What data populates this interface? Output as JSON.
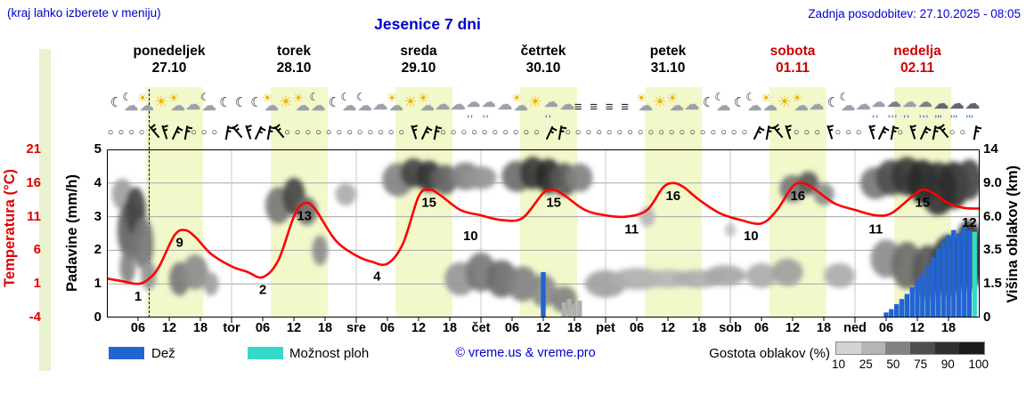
{
  "header": {
    "hint": "(kraj lahko izberete v meniju)",
    "title": "Jesenice 7 dni",
    "updated": "Zadnja posodobitev: 27.10.2025 - 08:05"
  },
  "days": [
    {
      "name": "ponedeljek",
      "date": "27.10",
      "weekend": false
    },
    {
      "name": "torek",
      "date": "28.10",
      "weekend": false
    },
    {
      "name": "sreda",
      "date": "29.10",
      "weekend": false
    },
    {
      "name": "četrtek",
      "date": "30.10",
      "weekend": false
    },
    {
      "name": "petek",
      "date": "31.10",
      "weekend": false
    },
    {
      "name": "sobota",
      "date": "01.11",
      "weekend": true
    },
    {
      "name": "nedelja",
      "date": "02.11",
      "weekend": true
    }
  ],
  "left_axis": {
    "temp_label": "Temperatura (°C)",
    "temp_ticks": [
      "21",
      "16",
      "11",
      "6",
      "1",
      "-4"
    ],
    "precip_label": "Padavine (mm/h)",
    "precip_ticks": [
      "5",
      "4",
      "3",
      "2",
      "1",
      "0"
    ]
  },
  "right_axis": {
    "label": "Višina oblakov (km)",
    "ticks": [
      "14",
      "9.0",
      "6.0",
      "3.5",
      "1.5",
      "0"
    ]
  },
  "x_axis": {
    "labels": [
      {
        "t": 6,
        "text": "06"
      },
      {
        "t": 12,
        "text": "12"
      },
      {
        "t": 18,
        "text": "18"
      },
      {
        "t": 24,
        "text": "tor",
        "day": true
      },
      {
        "t": 30,
        "text": "06"
      },
      {
        "t": 36,
        "text": "12"
      },
      {
        "t": 42,
        "text": "18"
      },
      {
        "t": 48,
        "text": "sre",
        "day": true
      },
      {
        "t": 54,
        "text": "06"
      },
      {
        "t": 60,
        "text": "12"
      },
      {
        "t": 66,
        "text": "18"
      },
      {
        "t": 72,
        "text": "čet",
        "day": true
      },
      {
        "t": 78,
        "text": "06"
      },
      {
        "t": 84,
        "text": "12"
      },
      {
        "t": 90,
        "text": "18"
      },
      {
        "t": 96,
        "text": "pet",
        "day": true
      },
      {
        "t": 102,
        "text": "06"
      },
      {
        "t": 108,
        "text": "12"
      },
      {
        "t": 114,
        "text": "18"
      },
      {
        "t": 120,
        "text": "sob",
        "day": true
      },
      {
        "t": 126,
        "text": "06"
      },
      {
        "t": 132,
        "text": "12"
      },
      {
        "t": 138,
        "text": "18"
      },
      {
        "t": 144,
        "text": "ned",
        "day": true
      },
      {
        "t": 150,
        "text": "06"
      },
      {
        "t": 156,
        "text": "12"
      },
      {
        "t": 162,
        "text": "18"
      }
    ]
  },
  "legend": {
    "rain": "Dež",
    "showers": "Možnost ploh",
    "copyright": "© vreme.us & vreme.pro",
    "clouddensity": "Gostota oblakov (%)",
    "cloud_scale": [
      "10",
      "25",
      "50",
      "75",
      "90",
      "100"
    ]
  },
  "icons": {
    "glyphs": {
      "sun": "☀",
      "moon": "☾",
      "cloud": "☁",
      "fog": "≡",
      "drops": "‚‚",
      "drops_heavy": "‚‚‚",
      "calm": "○"
    },
    "slots": [
      "moon",
      "cloud-moon",
      "sun-cloud",
      "sun",
      "sun-cloud",
      "cloud",
      "cloud-moon",
      "moon",
      "moon",
      "moon",
      "sun-cloud",
      "sun",
      "sun-cloud",
      "cloud-moon",
      "moon",
      "cloud-moon",
      "cloud-moon",
      "cloud",
      "sun-cloud",
      "sun",
      "sun-cloud",
      "cloud",
      "cloud",
      "cloud-rain",
      "cloud-rain",
      "cloud",
      "sun-cloud",
      "sun",
      "cloud-rain",
      "cloud",
      "fog",
      "fog",
      "fog",
      "fog",
      "sun-cloud",
      "sun",
      "sun-cloud",
      "cloud",
      "moon",
      "cloud-moon",
      "moon",
      "cloud-moon",
      "sun-cloud",
      "sun",
      "sun-cloud",
      "cloud",
      "moon",
      "cloud-moon",
      "cloud",
      "cloud-rain",
      "rain",
      "cloud-rain",
      "rain",
      "heavy-rain",
      "heavy-rain",
      "heavy-rain"
    ]
  },
  "wind": {
    "slots": [
      "c",
      "c",
      "c",
      "c",
      "b",
      "b",
      "b",
      "b",
      "c",
      "c",
      "c",
      "b",
      "b",
      "b",
      "b",
      "b",
      "b",
      "c",
      "c",
      "c",
      "c",
      "c",
      "c",
      "c",
      "c",
      "c",
      "c",
      "c",
      "c",
      "b",
      "b",
      "b",
      "c",
      "c",
      "c",
      "c",
      "c",
      "c",
      "c",
      "c",
      "c",
      "c",
      "b",
      "b",
      "c",
      "c",
      "c",
      "c",
      "c",
      "c",
      "c",
      "c",
      "c",
      "c",
      "c",
      "c",
      "c",
      "c",
      "c",
      "c",
      "c",
      "c",
      "b",
      "b",
      "b",
      "b",
      "c",
      "c",
      "c",
      "b",
      "c",
      "c",
      "c",
      "b",
      "b",
      "b",
      "c",
      "b",
      "b",
      "b",
      "b",
      "c",
      "c",
      "b"
    ]
  },
  "chart_data": {
    "type": "line",
    "title": "Jesenice 7 dni",
    "x_unit": "hours from Mon 27.10 00:00",
    "x_range": [
      0,
      168
    ],
    "ylim_temp": [
      -4,
      21
    ],
    "ylim_precip": [
      0,
      5
    ],
    "cloud_height_ticks_km": [
      0,
      1.5,
      3.5,
      6,
      9,
      14
    ],
    "cloud_density_scale": [
      10,
      25,
      50,
      75,
      90,
      100
    ],
    "day_bands": {
      "start_hour": 7.5,
      "end_hour": 18.5,
      "color": "#f3f8cb"
    },
    "now_line_t": 8.1,
    "temperature_series": {
      "name": "Temperatura (°C)",
      "color": "#ff0000",
      "points": [
        [
          0,
          1.8
        ],
        [
          3,
          1.4
        ],
        [
          6,
          1.0
        ],
        [
          8,
          1.7
        ],
        [
          10,
          3.5
        ],
        [
          13,
          8.2
        ],
        [
          15,
          9.0
        ],
        [
          17,
          8.0
        ],
        [
          20,
          5.5
        ],
        [
          24,
          3.6
        ],
        [
          27,
          2.8
        ],
        [
          30,
          2.0
        ],
        [
          33,
          4.5
        ],
        [
          36,
          11.0
        ],
        [
          38,
          13.0
        ],
        [
          40,
          12.2
        ],
        [
          44,
          7.5
        ],
        [
          48,
          5.2
        ],
        [
          51,
          4.3
        ],
        [
          54,
          4.0
        ],
        [
          57,
          7.0
        ],
        [
          60,
          14.0
        ],
        [
          62,
          15.0
        ],
        [
          64,
          14.3
        ],
        [
          68,
          12.0
        ],
        [
          72,
          11.2
        ],
        [
          76,
          10.5
        ],
        [
          80,
          10.8
        ],
        [
          84,
          14.5
        ],
        [
          86,
          15.0
        ],
        [
          88,
          14.2
        ],
        [
          92,
          12.0
        ],
        [
          96,
          11.2
        ],
        [
          100,
          11.0
        ],
        [
          104,
          12.0
        ],
        [
          107,
          15.3
        ],
        [
          109,
          16.0
        ],
        [
          111,
          15.4
        ],
        [
          114,
          13.5
        ],
        [
          118,
          11.5
        ],
        [
          122,
          10.5
        ],
        [
          126,
          10.0
        ],
        [
          129,
          12.0
        ],
        [
          132,
          15.5
        ],
        [
          134,
          16.0
        ],
        [
          136,
          15.2
        ],
        [
          140,
          13.0
        ],
        [
          144,
          12.0
        ],
        [
          148,
          11.2
        ],
        [
          151,
          11.5
        ],
        [
          155,
          14.0
        ],
        [
          157,
          15.0
        ],
        [
          159,
          14.5
        ],
        [
          162,
          13.0
        ],
        [
          165,
          12.3
        ],
        [
          168,
          12.2
        ]
      ]
    },
    "temp_labels": [
      {
        "t": 6,
        "v": 1
      },
      {
        "t": 14,
        "v": 9
      },
      {
        "t": 30,
        "v": 2
      },
      {
        "t": 38,
        "v": 13
      },
      {
        "t": 52,
        "v": 4
      },
      {
        "t": 62,
        "v": 15
      },
      {
        "t": 70,
        "v": 10
      },
      {
        "t": 86,
        "v": 15
      },
      {
        "t": 101,
        "v": 11
      },
      {
        "t": 109,
        "v": 16
      },
      {
        "t": 124,
        "v": 10
      },
      {
        "t": 133,
        "v": 16
      },
      {
        "t": 148,
        "v": 11
      },
      {
        "t": 157,
        "v": 15
      },
      {
        "t": 166,
        "v": 12
      }
    ],
    "rain_bars": {
      "name": "Dež",
      "color": "#2264d2",
      "unit": "mm/h",
      "bars": [
        [
          84,
          1.35
        ],
        [
          150,
          0.15
        ],
        [
          151,
          0.25
        ],
        [
          152,
          0.4
        ],
        [
          153,
          0.55
        ],
        [
          154,
          0.7
        ],
        [
          155,
          0.9
        ],
        [
          156,
          1.1
        ],
        [
          157,
          1.3
        ],
        [
          158,
          1.55
        ],
        [
          159,
          1.8
        ],
        [
          160,
          2.05
        ],
        [
          161,
          2.25
        ],
        [
          162,
          2.45
        ],
        [
          163,
          2.6
        ],
        [
          164,
          2.5
        ],
        [
          165,
          2.7
        ],
        [
          166,
          2.6
        ]
      ]
    },
    "shower_bars": {
      "name": "Možnost ploh",
      "color": "#35d9c9",
      "bars": [
        [
          167,
          2.55
        ]
      ]
    },
    "gray_bars": [
      [
        88,
        0.45
      ],
      [
        89,
        0.55
      ],
      [
        90,
        0.4
      ],
      [
        91,
        0.5
      ]
    ],
    "clouds": {
      "name": "Gostota oblakov (%)",
      "blobs": [
        [
          3,
          8,
          2,
          1.5,
          35
        ],
        [
          4.5,
          5,
          2.5,
          2.2,
          65
        ],
        [
          5.5,
          6.5,
          2,
          2,
          80
        ],
        [
          7,
          4,
          2,
          1.8,
          55
        ],
        [
          4,
          2.5,
          1.5,
          1,
          50
        ],
        [
          8,
          2,
          1.5,
          0.8,
          40
        ],
        [
          14,
          1.8,
          2,
          0.9,
          55
        ],
        [
          17,
          2.2,
          2.5,
          1,
          45
        ],
        [
          20,
          1.5,
          1.5,
          0.6,
          35
        ],
        [
          33,
          7,
          2.5,
          1.6,
          55
        ],
        [
          36,
          7.8,
          2.2,
          1.8,
          80
        ],
        [
          38.5,
          6.5,
          2,
          1.2,
          60
        ],
        [
          41,
          3.5,
          1.5,
          1,
          45
        ],
        [
          46,
          8,
          2,
          1,
          30
        ],
        [
          56,
          9.5,
          3,
          2,
          50
        ],
        [
          59,
          10.5,
          2.5,
          2,
          80
        ],
        [
          62,
          10,
          2.5,
          2,
          88
        ],
        [
          65,
          9.5,
          2.5,
          1.8,
          65
        ],
        [
          69,
          10,
          3,
          1.8,
          50
        ],
        [
          72,
          9.8,
          3,
          1.5,
          40
        ],
        [
          68,
          1.8,
          3,
          0.9,
          40
        ],
        [
          72,
          2.2,
          3,
          1.1,
          55
        ],
        [
          76,
          1.8,
          3,
          1,
          60
        ],
        [
          79,
          10,
          3,
          2,
          60
        ],
        [
          82,
          10.5,
          2.5,
          2.2,
          85
        ],
        [
          85,
          10,
          2.5,
          2.2,
          92
        ],
        [
          88,
          9.5,
          2.5,
          2,
          70
        ],
        [
          91,
          9.8,
          2.5,
          1.8,
          50
        ],
        [
          80,
          1.5,
          3,
          0.9,
          50
        ],
        [
          84,
          1.2,
          2.5,
          0.8,
          45
        ],
        [
          88,
          0.8,
          2.5,
          0.6,
          50
        ],
        [
          96,
          1.5,
          4,
          0.7,
          35
        ],
        [
          102,
          1.8,
          5,
          0.6,
          28
        ],
        [
          108,
          1.8,
          5,
          0.5,
          25
        ],
        [
          114,
          1.8,
          5,
          0.5,
          28
        ],
        [
          119,
          2,
          4,
          0.6,
          32
        ],
        [
          104,
          6,
          1.5,
          0.8,
          25
        ],
        [
          126,
          2,
          3,
          0.7,
          30
        ],
        [
          131,
          2.2,
          3,
          0.8,
          35
        ],
        [
          132,
          8.5,
          2.5,
          1.4,
          55
        ],
        [
          135,
          9,
          2,
          1.3,
          70
        ],
        [
          138,
          8,
          2,
          1,
          45
        ],
        [
          141,
          2,
          3,
          0.7,
          30
        ],
        [
          148,
          9,
          3,
          1.8,
          55
        ],
        [
          151,
          9.8,
          3,
          2.2,
          75
        ],
        [
          154,
          10,
          3,
          2.4,
          85
        ],
        [
          157,
          9.2,
          3,
          2.5,
          92
        ],
        [
          160,
          8.5,
          3.5,
          2.8,
          88
        ],
        [
          163,
          8.8,
          3,
          2.6,
          90
        ],
        [
          166,
          9.5,
          2.5,
          2.4,
          80
        ],
        [
          150,
          3,
          3,
          1.2,
          45
        ],
        [
          154,
          2.6,
          3,
          1.4,
          60
        ],
        [
          158,
          2.2,
          3,
          1.5,
          70
        ],
        [
          162,
          2.6,
          3.5,
          1.8,
          82
        ],
        [
          166,
          3.2,
          3,
          2.2,
          85
        ],
        [
          120,
          5,
          1,
          0.5,
          20
        ]
      ]
    }
  }
}
